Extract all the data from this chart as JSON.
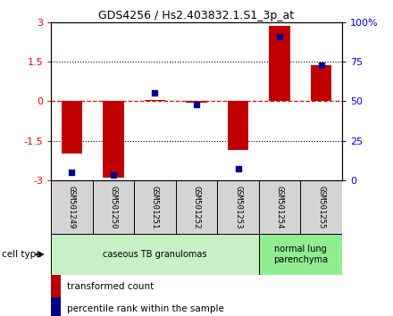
{
  "title": "GDS4256 / Hs2.403832.1.S1_3p_at",
  "samples": [
    "GSM501249",
    "GSM501250",
    "GSM501251",
    "GSM501252",
    "GSM501253",
    "GSM501254",
    "GSM501255"
  ],
  "transformed_count": [
    -2.0,
    -2.9,
    0.05,
    -0.05,
    -1.85,
    2.87,
    1.35
  ],
  "percentile_rank": [
    5,
    3,
    55,
    48,
    7,
    91,
    73
  ],
  "ylim_left": [
    -3,
    3
  ],
  "ylim_right": [
    0,
    100
  ],
  "yticks_left": [
    -3,
    -1.5,
    0,
    1.5,
    3
  ],
  "ytick_labels_left": [
    "-3",
    "-1.5",
    "0",
    "1.5",
    "3"
  ],
  "yticks_right": [
    0,
    25,
    50,
    75,
    100
  ],
  "ytick_labels_right": [
    "0",
    "25",
    "50",
    "75",
    "100%"
  ],
  "bar_color": "#c00000",
  "dot_color": "#00008b",
  "cell_type_groups": [
    {
      "label": "caseous TB granulomas",
      "start": 0,
      "end": 4,
      "color": "#c8f0c8"
    },
    {
      "label": "normal lung\nparenchyma",
      "start": 5,
      "end": 6,
      "color": "#90ee90"
    }
  ],
  "cell_type_label": "cell type",
  "legend_items": [
    {
      "color": "#c00000",
      "label": "transformed count"
    },
    {
      "color": "#00008b",
      "label": "percentile rank within the sample"
    }
  ],
  "bg_color": "#ffffff"
}
